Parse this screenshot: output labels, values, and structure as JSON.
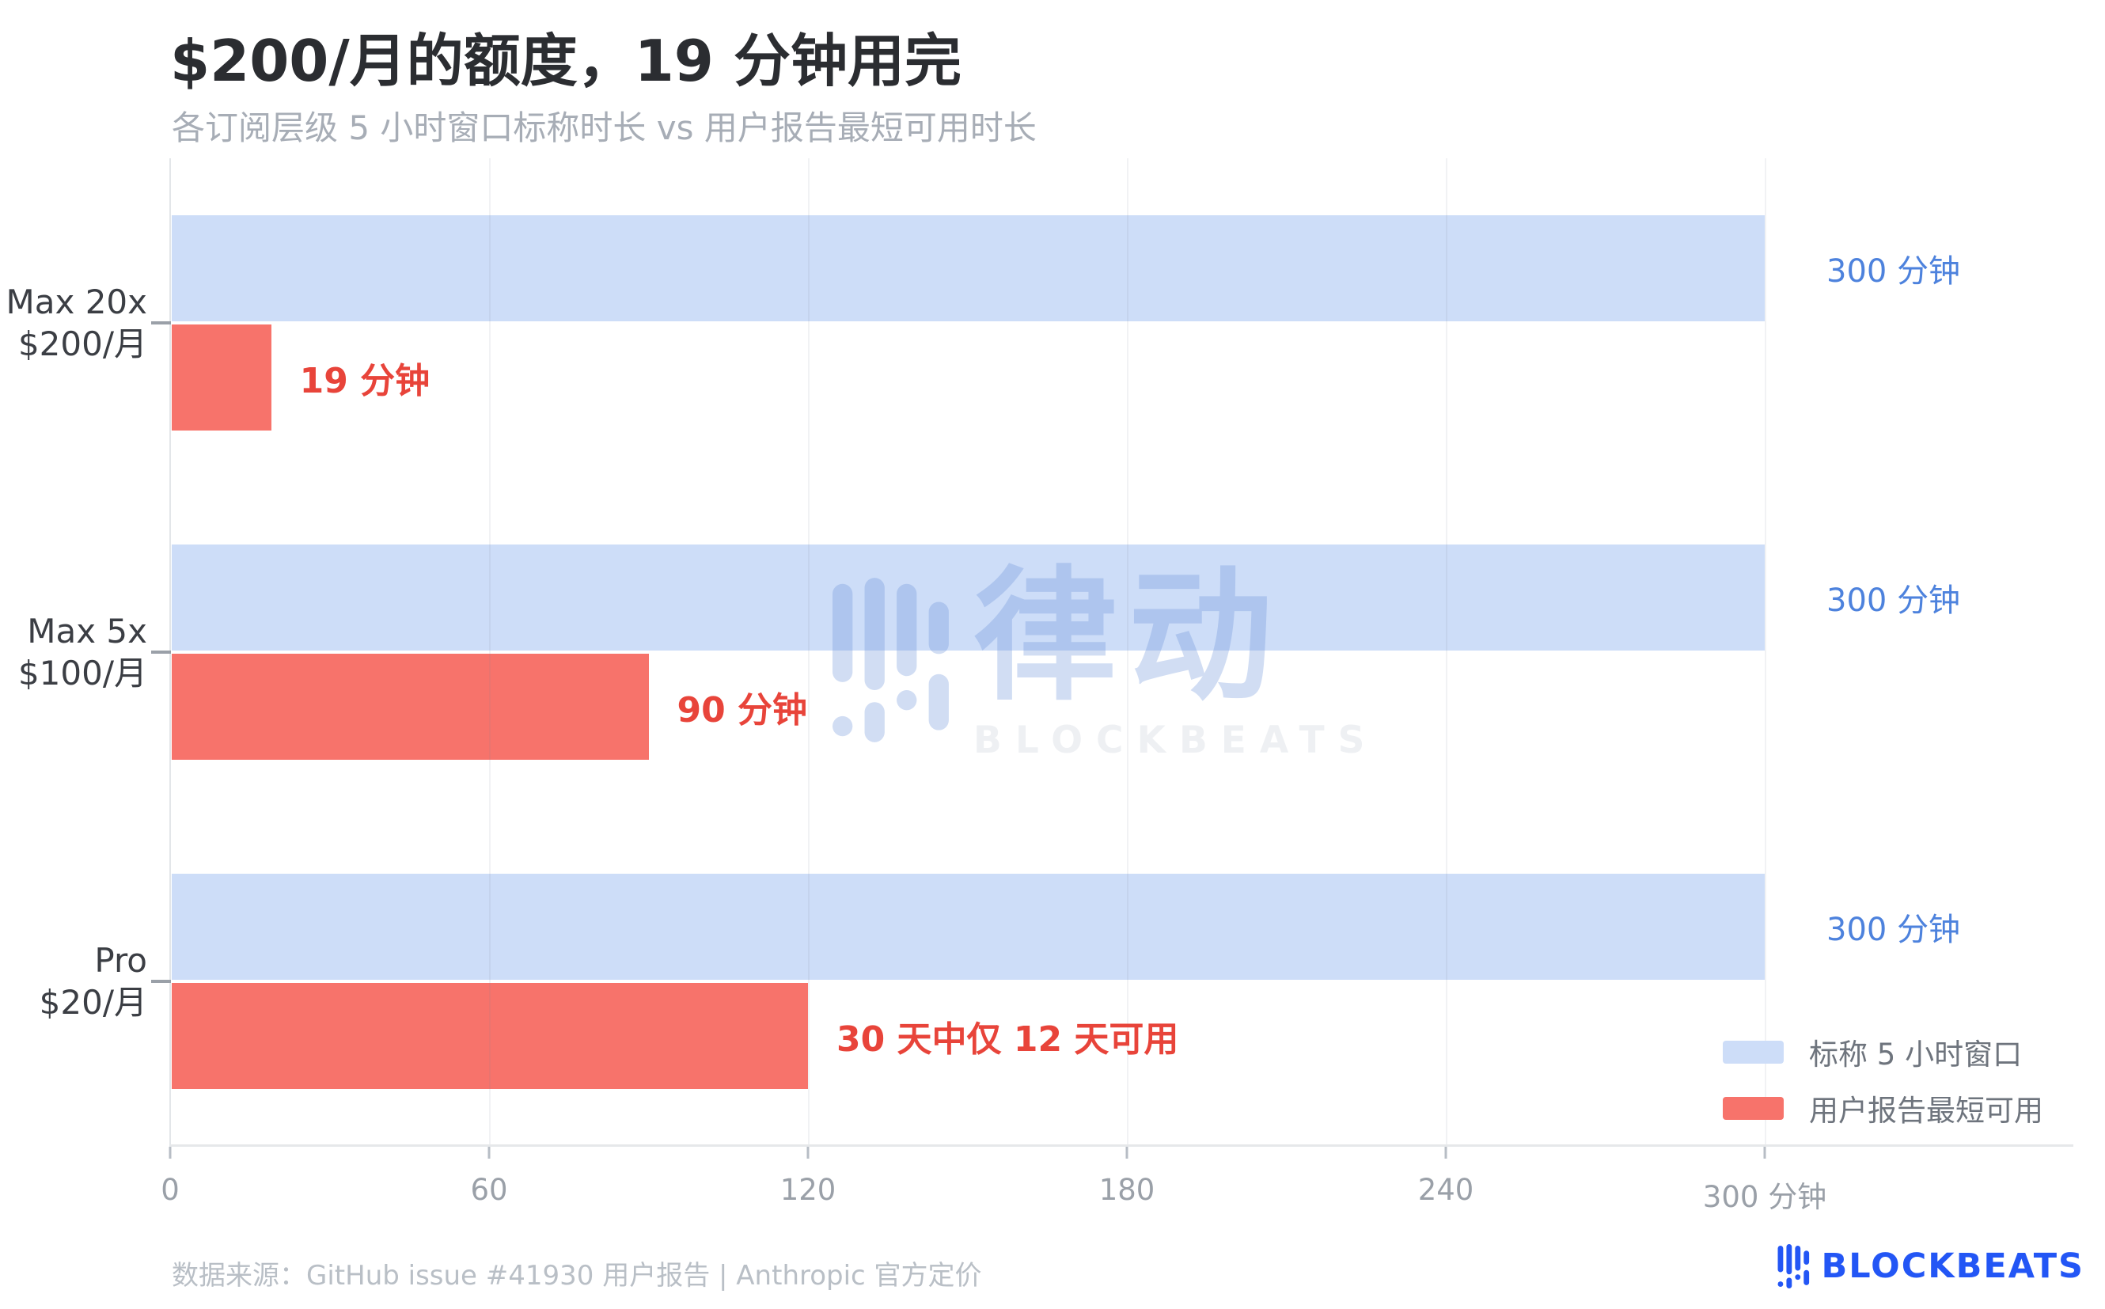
{
  "header": {
    "title": "$200/月的额度，19 分钟用完",
    "subtitle": "各订阅层级 5 小时窗口标称时长 vs 用户报告最短可用时长"
  },
  "chart_data": {
    "type": "bar",
    "orientation": "horizontal",
    "title": "$200/月的额度，19 分钟用完",
    "subtitle": "各订阅层级 5 小时窗口标称时长 vs 用户报告最短可用时长",
    "unit": "分钟",
    "xlim": [
      0,
      300
    ],
    "x_ticks": [
      {
        "value": 0,
        "label": "0"
      },
      {
        "value": 60,
        "label": "60"
      },
      {
        "value": 120,
        "label": "120"
      },
      {
        "value": 180,
        "label": "180"
      },
      {
        "value": 240,
        "label": "240"
      },
      {
        "value": 300,
        "label": "300 分钟"
      }
    ],
    "grid": true,
    "legend_position": "bottom-right",
    "categories": [
      [
        "Max 20x",
        "$200/月"
      ],
      [
        "Max 5x",
        "$100/月"
      ],
      [
        "Pro",
        "$20/月"
      ]
    ],
    "series": [
      {
        "name": "标称 5 小时窗口",
        "color": "#cdddf8",
        "label_color": "#4d82dd",
        "values": [
          300,
          300,
          300
        ],
        "value_labels": [
          "300 分钟",
          "300 分钟",
          "300 分钟"
        ]
      },
      {
        "name": "用户报告最短可用",
        "color": "#f7736b",
        "label_color": "#e8443a",
        "values": [
          19,
          90,
          120
        ],
        "value_labels": [
          "19 分钟",
          "90 分钟",
          "30 天中仅 12 天可用"
        ]
      }
    ]
  },
  "legend": {
    "items": [
      {
        "label": "标称 5 小时窗口",
        "color": "#cdddf8"
      },
      {
        "label": "用户报告最短可用",
        "color": "#f7736b"
      }
    ]
  },
  "watermark": {
    "cn": "律动",
    "en": "BLOCKBEATS"
  },
  "footer": {
    "source": "数据来源：GitHub issue #41930 用户报告 | Anthropic 官方定价",
    "brand": "BLOCKBEATS"
  }
}
